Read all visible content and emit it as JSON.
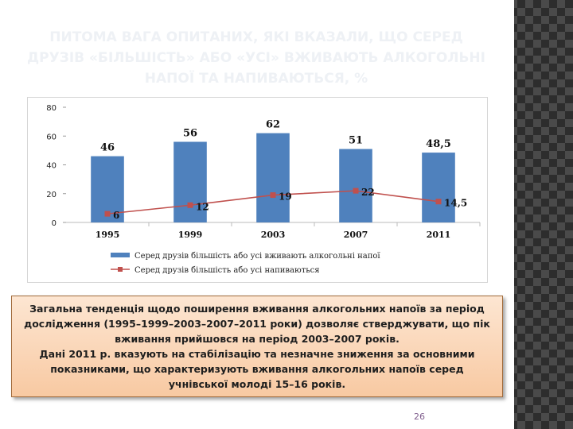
{
  "slide": {
    "title": "ПИТОМА ВАГА ОПИТАНИХ, ЯКІ ВКАЗАЛИ, ЩО СЕРЕД ДРУЗІВ «БІЛЬШІСТЬ» АБО «УСІ» ВЖИВАЮТЬ АЛКОГОЛЬНІ НАПОЇ ТА НАПИВАЮТЬСЯ, %",
    "page_number": "26"
  },
  "chart_data": {
    "type": "bar",
    "categories": [
      "1995",
      "1999",
      "2003",
      "2007",
      "2011"
    ],
    "series": [
      {
        "name": "Серед друзів більшість або усі вживають алкогольні напої",
        "kind": "bar",
        "values": [
          46,
          56,
          62,
          51,
          48.5
        ],
        "labels": [
          "46",
          "56",
          "62",
          "51",
          "48,5"
        ],
        "color": "#4f81bd"
      },
      {
        "name": "Серед друзів більшість або усі напиваються",
        "kind": "line",
        "values": [
          6,
          12,
          19,
          22,
          14.5
        ],
        "labels": [
          "6",
          "12",
          "19",
          "22",
          "14,5"
        ],
        "color": "#c0504d"
      }
    ],
    "ylim": [
      0,
      80
    ],
    "yticks": [
      0,
      20,
      40,
      60,
      80
    ],
    "legend_position": "bottom",
    "grid": false
  },
  "note": {
    "paragraph1": "Загальна тенденція щодо поширення вживання алкогольних напоїв за період дослідження (1995–1999–2003–2007–2011 роки) дозволяє стверджувати, що пік вживання прийшовся на період 2003–2007 років.",
    "paragraph2": "Дані 2011 р. вказують на стабілізацію та незначне зниження за основними показниками, що характеризують вживання алкогольних напоїв серед учнівської молоді 15–16 років."
  }
}
